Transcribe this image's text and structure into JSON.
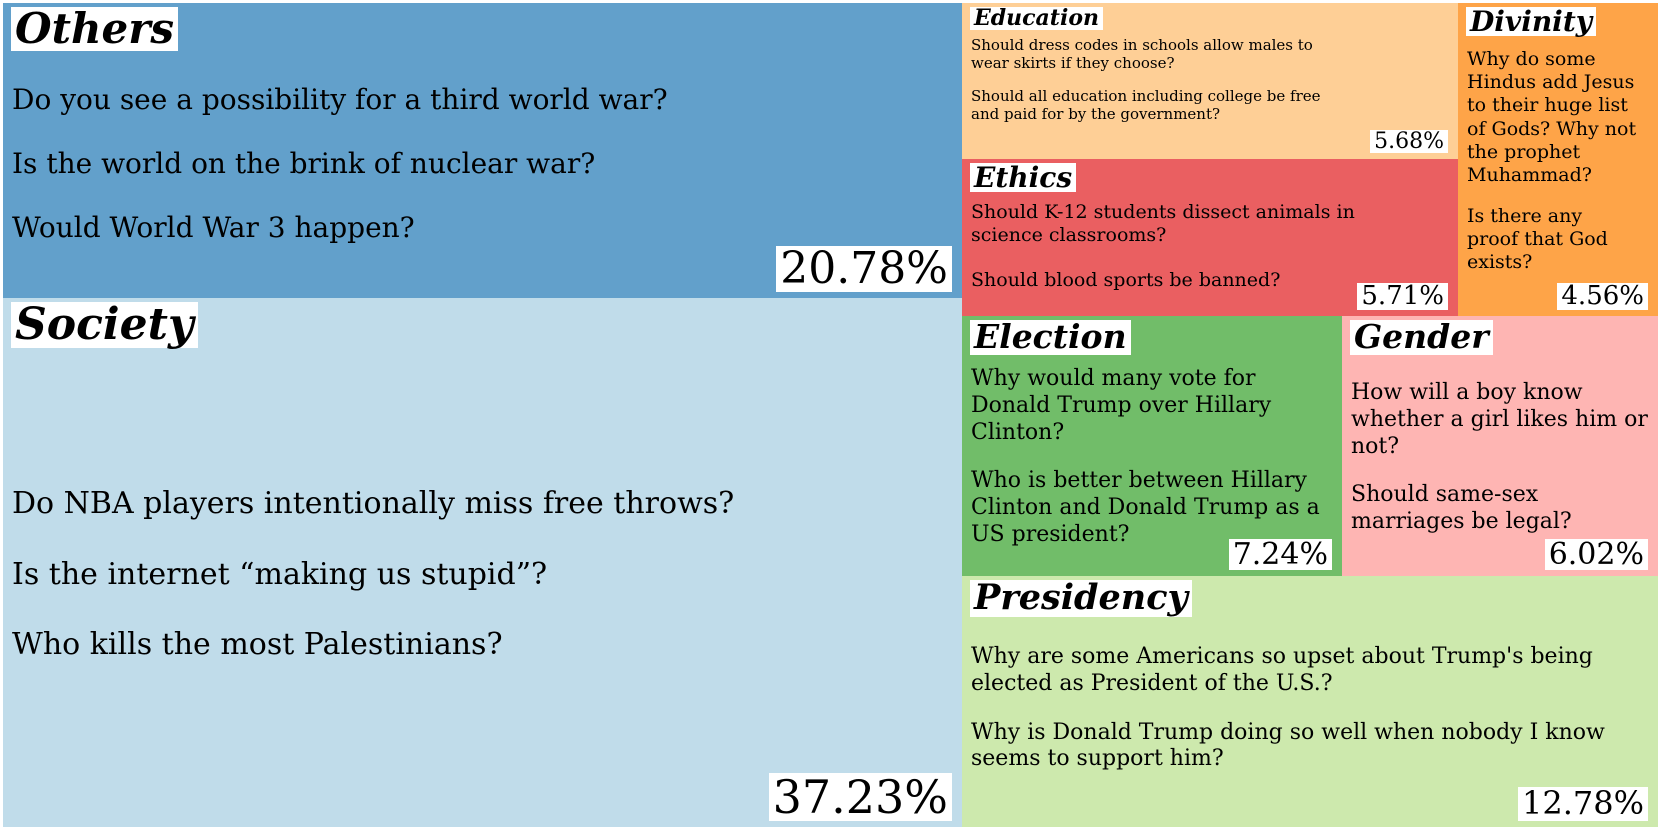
{
  "chart_data": {
    "type": "treemap",
    "tiles": [
      {
        "id": "others",
        "category": "Others",
        "percent": "20.78%",
        "value": 20.78,
        "color": "#62a0cb",
        "questions": [
          "Do you see a possibility for a third world war?",
          "Is the world on the brink of nuclear war?",
          "Would World War 3 happen?"
        ]
      },
      {
        "id": "society",
        "category": "Society",
        "percent": "37.23%",
        "value": 37.23,
        "color": "#c0dcea",
        "questions": [
          "Do NBA players intentionally miss free throws?",
          "Is the internet “making us stupid”?",
          "Who kills the most Palestinians?"
        ]
      },
      {
        "id": "education",
        "category": "Education",
        "percent": "5.68%",
        "value": 5.68,
        "color": "#fecf96",
        "questions": [
          "Should dress codes in schools allow males to wear skirts if they choose?",
          "Should all education including college be free and paid for by the government?"
        ]
      },
      {
        "id": "divinity",
        "category": "Divinity",
        "percent": "4.56%",
        "value": 4.56,
        "color": "#fea448",
        "questions": [
          "Why do some Hindus add Jesus to their huge list of Gods? Why not the prophet Muhammad?",
          "Is there any proof that God exists?"
        ]
      },
      {
        "id": "ethics",
        "category": "Ethics",
        "percent": "5.71%",
        "value": 5.71,
        "color": "#ea5f61",
        "questions": [
          "Should K-12 students dissect animals in science classrooms?",
          "Should blood sports be banned?"
        ]
      },
      {
        "id": "election",
        "category": "Election",
        "percent": "7.24%",
        "value": 7.24,
        "color": "#71bd69",
        "questions": [
          "Why would many vote for Donald Trump over Hillary Clinton?",
          "Who is better between Hillary Clinton and Donald Trump as a US president?"
        ]
      },
      {
        "id": "gender",
        "category": "Gender",
        "percent": "6.02%",
        "value": 6.02,
        "color": "#feb5b3",
        "questions": [
          "How will a boy know whether a girl likes him or not?",
          "Should same-sex marriages be legal?"
        ]
      },
      {
        "id": "presidency",
        "category": "Presidency",
        "percent": "12.78%",
        "value": 12.78,
        "color": "#cde9ad",
        "questions": [
          "Why are some Americans so upset about Trump's being elected as President of the U.S.?",
          "Why is Donald Trump doing so well when nobody I know seems to support him?"
        ]
      }
    ]
  }
}
